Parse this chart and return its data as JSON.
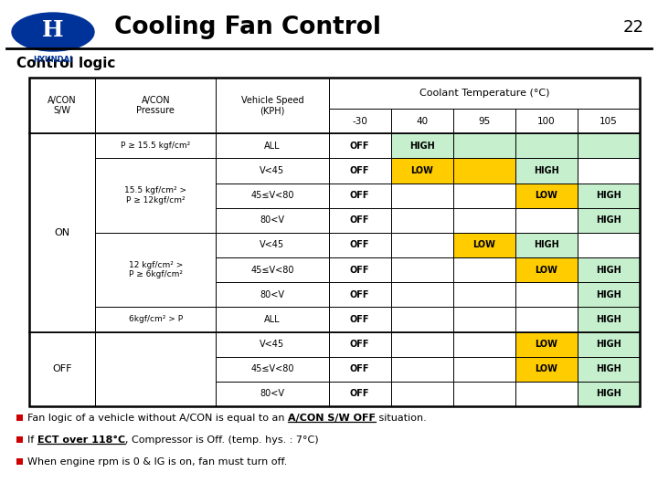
{
  "title": "Cooling Fan Control",
  "page_number": "22",
  "section_title": "Control logic",
  "colors": {
    "green": "#c6efce",
    "yellow": "#ffcc00",
    "white": "#ffffff"
  },
  "speeds": [
    "ALL",
    "V<45",
    "45≤V<80",
    "80<V",
    "V<45",
    "45≤V<80",
    "80<V",
    "ALL",
    "V<45",
    "45≤V<80",
    "80<V"
  ],
  "cell_data": [
    [
      0,
      0,
      "OFF",
      "white"
    ],
    [
      0,
      1,
      "HIGH",
      "green"
    ],
    [
      0,
      2,
      "",
      "green"
    ],
    [
      0,
      3,
      "",
      "green"
    ],
    [
      0,
      4,
      "",
      "green"
    ],
    [
      1,
      0,
      "OFF",
      "white"
    ],
    [
      1,
      1,
      "LOW",
      "yellow"
    ],
    [
      1,
      2,
      "",
      "yellow"
    ],
    [
      1,
      3,
      "HIGH",
      "green"
    ],
    [
      1,
      4,
      "",
      "white"
    ],
    [
      2,
      0,
      "OFF",
      "white"
    ],
    [
      2,
      1,
      "",
      "white"
    ],
    [
      2,
      2,
      "",
      "white"
    ],
    [
      2,
      3,
      "LOW",
      "yellow"
    ],
    [
      2,
      4,
      "HIGH",
      "green"
    ],
    [
      3,
      0,
      "OFF",
      "white"
    ],
    [
      3,
      1,
      "",
      "white"
    ],
    [
      3,
      2,
      "",
      "white"
    ],
    [
      3,
      3,
      "",
      "white"
    ],
    [
      3,
      4,
      "HIGH",
      "green"
    ],
    [
      4,
      0,
      "OFF",
      "white"
    ],
    [
      4,
      1,
      "",
      "white"
    ],
    [
      4,
      2,
      "LOW",
      "yellow"
    ],
    [
      4,
      3,
      "HIGH",
      "green"
    ],
    [
      4,
      4,
      "",
      "white"
    ],
    [
      5,
      0,
      "OFF",
      "white"
    ],
    [
      5,
      1,
      "",
      "white"
    ],
    [
      5,
      2,
      "",
      "white"
    ],
    [
      5,
      3,
      "LOW",
      "yellow"
    ],
    [
      5,
      4,
      "HIGH",
      "green"
    ],
    [
      6,
      0,
      "OFF",
      "white"
    ],
    [
      6,
      1,
      "",
      "white"
    ],
    [
      6,
      2,
      "",
      "white"
    ],
    [
      6,
      3,
      "",
      "white"
    ],
    [
      6,
      4,
      "HIGH",
      "green"
    ],
    [
      7,
      0,
      "OFF",
      "white"
    ],
    [
      7,
      1,
      "",
      "white"
    ],
    [
      7,
      2,
      "",
      "white"
    ],
    [
      7,
      3,
      "",
      "white"
    ],
    [
      7,
      4,
      "HIGH",
      "green"
    ],
    [
      8,
      0,
      "OFF",
      "white"
    ],
    [
      8,
      1,
      "",
      "white"
    ],
    [
      8,
      2,
      "",
      "white"
    ],
    [
      8,
      3,
      "LOW",
      "yellow"
    ],
    [
      8,
      4,
      "HIGH",
      "green"
    ],
    [
      9,
      0,
      "OFF",
      "white"
    ],
    [
      9,
      1,
      "",
      "white"
    ],
    [
      9,
      2,
      "",
      "white"
    ],
    [
      9,
      3,
      "LOW",
      "yellow"
    ],
    [
      9,
      4,
      "HIGH",
      "green"
    ],
    [
      10,
      0,
      "OFF",
      "white"
    ],
    [
      10,
      1,
      "",
      "white"
    ],
    [
      10,
      2,
      "",
      "white"
    ],
    [
      10,
      3,
      "",
      "white"
    ],
    [
      10,
      4,
      "HIGH",
      "green"
    ]
  ]
}
